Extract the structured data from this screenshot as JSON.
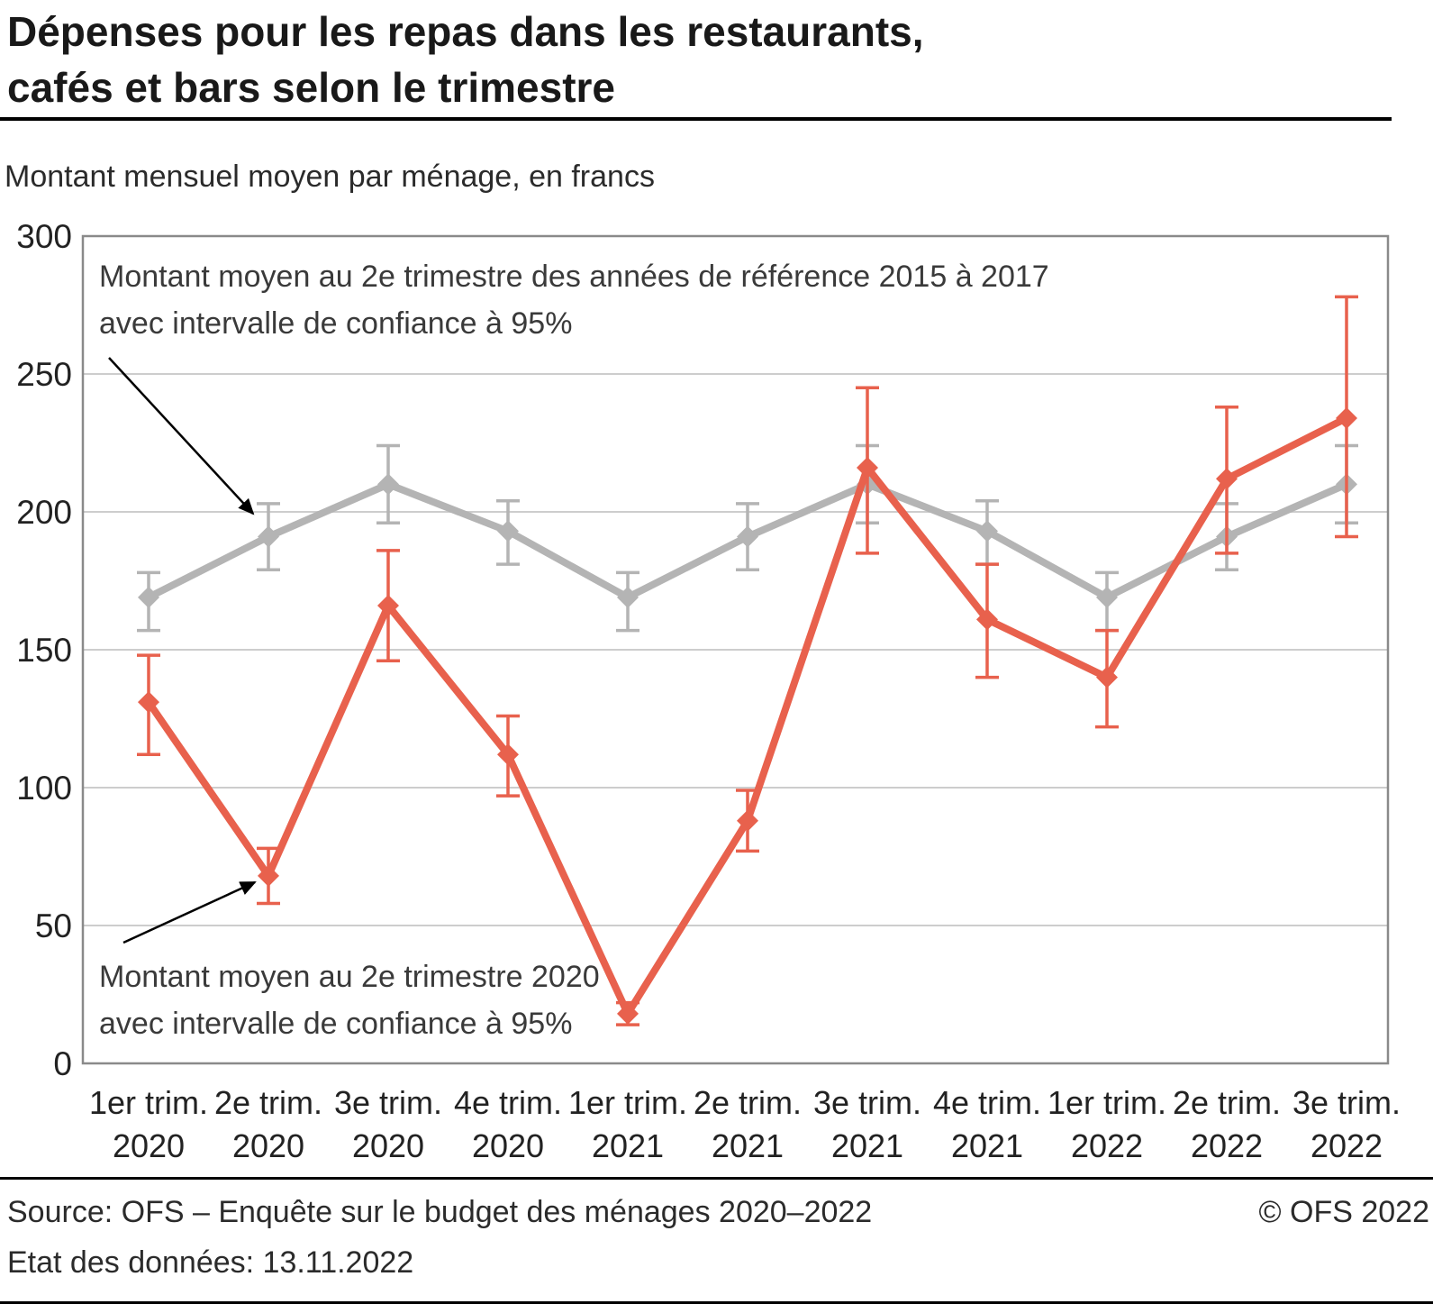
{
  "header": {
    "title_line1": "Dépenses pour les repas dans les restaurants,",
    "title_line2": "cafés et bars selon le trimestre",
    "subtitle": "Montant mensuel moyen par ménage, en francs"
  },
  "annotations": {
    "reference": {
      "line1": "Montant moyen au 2e trimestre des années de référence 2015 à 2017",
      "line2": "avec intervalle de confiance à 95%"
    },
    "actual": {
      "line1": "Montant moyen au 2e trimestre 2020",
      "line2": "avec intervalle de confiance à 95%"
    }
  },
  "footer": {
    "source": "Source: OFS – Enquête sur le budget des ménages 2020–2022",
    "copyright": "© OFS 2022",
    "state": "Etat des données: 13.11.2022"
  },
  "chart_data": {
    "type": "line",
    "title": "Dépenses pour les repas dans les restaurants, cafés et bars selon le trimestre",
    "ylabel": "Montant mensuel moyen par ménage, en francs",
    "ylim": [
      0,
      300
    ],
    "yticks": [
      0,
      50,
      100,
      150,
      200,
      250,
      300
    ],
    "grid": "horizontal",
    "legend_position": "annotations-with-arrows",
    "colors": {
      "grid": "#cdcdcd",
      "frame": "#8a8a8a"
    },
    "categories_line1": [
      "1er trim.",
      "2e trim.",
      "3e trim.",
      "4e trim.",
      "1er trim.",
      "2e trim.",
      "3e trim.",
      "4e trim.",
      "1er trim.",
      "2e trim.",
      "3e trim."
    ],
    "categories_line2": [
      "2020",
      "2020",
      "2020",
      "2020",
      "2021",
      "2021",
      "2021",
      "2021",
      "2022",
      "2022",
      "2022"
    ],
    "series": [
      {
        "name": "reference-2015-2017",
        "label": "Montant moyen au trimestre des années de référence 2015 à 2017 avec intervalle de confiance à 95%",
        "color": "#b4b4b4",
        "values": [
          169,
          191,
          210,
          193,
          169,
          191,
          210,
          193,
          169,
          191,
          210
        ],
        "ci_low": [
          157,
          179,
          196,
          181,
          157,
          179,
          196,
          181,
          157,
          179,
          196
        ],
        "ci_high": [
          178,
          203,
          224,
          204,
          178,
          203,
          224,
          204,
          178,
          203,
          224
        ]
      },
      {
        "name": "actual-2020-2022",
        "label": "Montant moyen au trimestre courant avec intervalle de confiance à 95%",
        "color": "#e8614d",
        "values": [
          131,
          68,
          166,
          112,
          18,
          88,
          216,
          161,
          140,
          212,
          234
        ],
        "ci_low": [
          112,
          58,
          146,
          97,
          14,
          77,
          185,
          140,
          122,
          185,
          191
        ],
        "ci_high": [
          148,
          78,
          186,
          126,
          22,
          99,
          245,
          181,
          157,
          238,
          278
        ]
      }
    ]
  }
}
